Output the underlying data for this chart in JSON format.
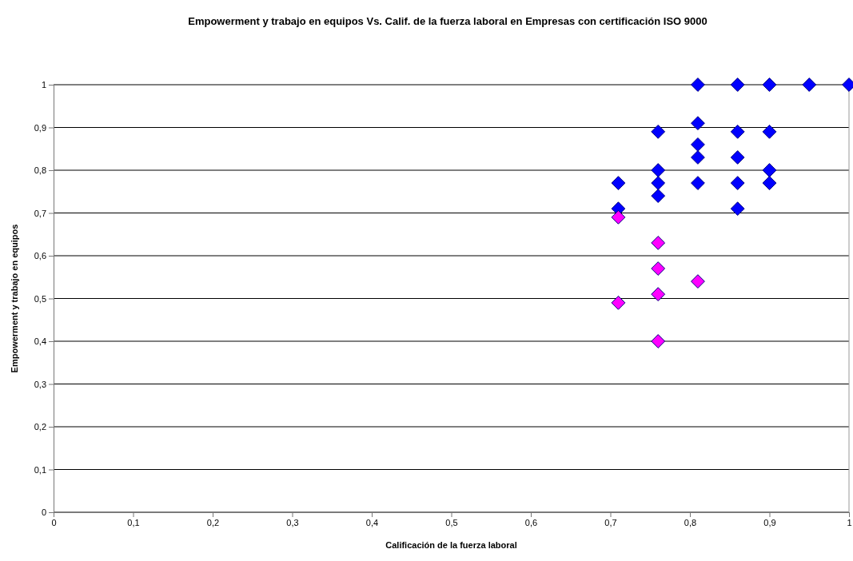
{
  "chart_data": {
    "type": "scatter",
    "title": "Empowerment y trabajo en equipos Vs. Calif. de la fuerza laboral en Empresas con certificación ISO 9000",
    "xlabel": "Calificación de la fuerza laboral",
    "ylabel": "Empowerment y trabajo en equipos",
    "xlim": [
      0,
      1
    ],
    "xticks": [
      0,
      {
        "value": 0.1,
        "label": "0,1"
      },
      {
        "value": 0.2,
        "label": "0,2"
      },
      {
        "value": 0.3,
        "label": "0,3"
      },
      {
        "value": 0.4,
        "label": "0,4"
      },
      {
        "value": 0.5,
        "label": "0,5"
      },
      {
        "value": 0.6,
        "label": "0,6"
      },
      {
        "value": 0.7,
        "label": "0,7"
      },
      {
        "value": 0.8,
        "label": "0,8"
      },
      {
        "value": 0.9,
        "label": "0,9"
      },
      1
    ],
    "ylim": [
      0,
      1
    ],
    "yticks": [
      0,
      {
        "value": 0.1,
        "label": "0,1"
      },
      {
        "value": 0.2,
        "label": "0,2"
      },
      {
        "value": 0.3,
        "label": "0,3"
      },
      {
        "value": 0.4,
        "label": "0,4"
      },
      {
        "value": 0.5,
        "label": "0,5"
      },
      {
        "value": 0.6,
        "label": "0,6"
      },
      {
        "value": 0.7,
        "label": "0,7"
      },
      {
        "value": 0.8,
        "label": "0,8"
      },
      {
        "value": 0.9,
        "label": "0,9"
      },
      1
    ],
    "grid": "y",
    "marker": "diamond",
    "series": [
      {
        "color": "#0000ff",
        "x": [
          0.71,
          0.71,
          0.76,
          0.76,
          0.76,
          0.76,
          0.81,
          0.81,
          0.81,
          0.81,
          0.81,
          0.86,
          0.86,
          0.86,
          0.86,
          0.86,
          0.9,
          0.9,
          0.9,
          0.9,
          0.95,
          1
        ],
        "values": [
          0.77,
          0.71,
          0.89,
          0.8,
          0.77,
          0.74,
          1,
          0.91,
          0.86,
          0.83,
          0.77,
          1,
          0.89,
          0.83,
          0.77,
          0.71,
          1,
          0.89,
          0.8,
          0.77,
          1,
          1
        ]
      },
      {
        "color": "#ff00ff",
        "x": [
          0.71,
          0.71,
          0.76,
          0.76,
          0.76,
          0.76,
          0.81
        ],
        "values": [
          0.69,
          0.49,
          0.63,
          0.57,
          0.51,
          0.4,
          0.54
        ]
      }
    ]
  }
}
